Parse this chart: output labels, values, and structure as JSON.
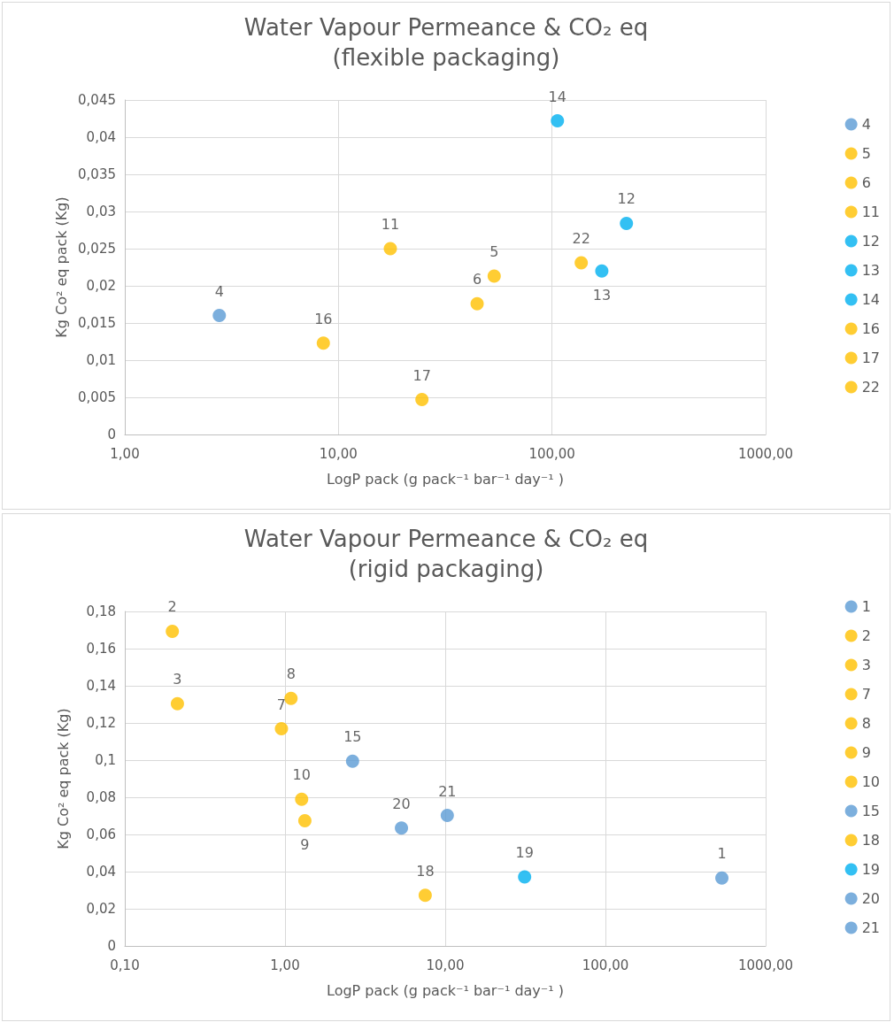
{
  "chart_data": [
    {
      "type": "scatter",
      "title": "Water Vapour Permeance & CO₂ eq\n(flexible packaging)",
      "xlabel": "LogP pack (g pack⁻¹ bar⁻¹ day⁻¹ )",
      "ylabel": "Kg Co² eq pack (Kg)",
      "log": "x",
      "grid": true,
      "legend": "right",
      "marker": "circle",
      "xlim": [
        1,
        1000
      ],
      "xticks": [
        {
          "value": 1,
          "label": "1,00"
        },
        {
          "value": 10,
          "label": "10,00"
        },
        {
          "value": 100,
          "label": "100,00"
        },
        {
          "value": 1000,
          "label": "1000,00"
        }
      ],
      "ylim": [
        0,
        0.045
      ],
      "yticks": [
        {
          "value": 0,
          "label": "0"
        },
        {
          "value": 0.005,
          "label": "0,005"
        },
        {
          "value": 0.01,
          "label": "0,01"
        },
        {
          "value": 0.015,
          "label": "0,015"
        },
        {
          "value": 0.02,
          "label": "0,02"
        },
        {
          "value": 0.025,
          "label": "0,025"
        },
        {
          "value": 0.03,
          "label": "0,03"
        },
        {
          "value": 0.035,
          "label": "0,035"
        },
        {
          "value": 0.04,
          "label": "0,04"
        },
        {
          "value": 0.045,
          "label": "0,045"
        }
      ],
      "series": [
        {
          "name": "4",
          "color": "#5b9bd5",
          "x": [
            2.77
          ],
          "values": [
            0.016
          ]
        },
        {
          "name": "5",
          "color": "#ffc000",
          "x": [
            53.6
          ],
          "values": [
            0.0213
          ]
        },
        {
          "name": "6",
          "color": "#ffc000",
          "x": [
            44.6
          ],
          "values": [
            0.0176
          ]
        },
        {
          "name": "11",
          "color": "#ffc000",
          "x": [
            17.5
          ],
          "values": [
            0.025
          ]
        },
        {
          "name": "12",
          "color": "#00b0f0",
          "x": [
            223
          ],
          "values": [
            0.0284
          ]
        },
        {
          "name": "13",
          "color": "#00b0f0",
          "x": [
            171
          ],
          "values": [
            0.022
          ]
        },
        {
          "name": "14",
          "color": "#00b0f0",
          "x": [
            106
          ],
          "values": [
            0.0422
          ]
        },
        {
          "name": "16",
          "color": "#ffc000",
          "x": [
            8.5
          ],
          "values": [
            0.0123
          ]
        },
        {
          "name": "17",
          "color": "#ffc000",
          "x": [
            24.6
          ],
          "values": [
            0.0047
          ]
        },
        {
          "name": "22",
          "color": "#ffc000",
          "x": [
            137
          ],
          "values": [
            0.0231
          ]
        }
      ]
    },
    {
      "type": "scatter",
      "title": "Water Vapour Permeance & CO₂ eq\n(rigid packaging)",
      "xlabel": "LogP pack (g pack⁻¹ bar⁻¹ day⁻¹ )",
      "ylabel": "Kg Co² eq pack (Kg)",
      "log": "x",
      "grid": true,
      "legend": "right",
      "marker": "circle",
      "xlim": [
        0.1,
        1000
      ],
      "xticks": [
        {
          "value": 0.1,
          "label": "0,10"
        },
        {
          "value": 1,
          "label": "1,00"
        },
        {
          "value": 10,
          "label": "10,00"
        },
        {
          "value": 100,
          "label": "100,00"
        },
        {
          "value": 1000,
          "label": "1000,00"
        }
      ],
      "ylim": [
        0,
        0.18
      ],
      "yticks": [
        {
          "value": 0,
          "label": "0"
        },
        {
          "value": 0.02,
          "label": "0,02"
        },
        {
          "value": 0.04,
          "label": "0,04"
        },
        {
          "value": 0.06,
          "label": "0,06"
        },
        {
          "value": 0.08,
          "label": "0,08"
        },
        {
          "value": 0.1,
          "label": "0,1"
        },
        {
          "value": 0.12,
          "label": "0,12"
        },
        {
          "value": 0.14,
          "label": "0,14"
        },
        {
          "value": 0.16,
          "label": "0,16"
        },
        {
          "value": 0.18,
          "label": "0,18"
        }
      ],
      "series": [
        {
          "name": "1",
          "color": "#5b9bd5",
          "x": [
            533
          ],
          "values": [
            0.0366
          ]
        },
        {
          "name": "2",
          "color": "#ffc000",
          "x": [
            0.198
          ],
          "values": [
            0.1693
          ]
        },
        {
          "name": "3",
          "color": "#ffc000",
          "x": [
            0.213
          ],
          "values": [
            0.1304
          ]
        },
        {
          "name": "7",
          "color": "#ffc000",
          "x": [
            0.95
          ],
          "values": [
            0.1169
          ]
        },
        {
          "name": "8",
          "color": "#ffc000",
          "x": [
            1.09
          ],
          "values": [
            0.1332
          ]
        },
        {
          "name": "9",
          "color": "#ffc000",
          "x": [
            1.33
          ],
          "values": [
            0.0674
          ]
        },
        {
          "name": "10",
          "color": "#ffc000",
          "x": [
            1.27
          ],
          "values": [
            0.0789
          ]
        },
        {
          "name": "15",
          "color": "#5b9bd5",
          "x": [
            2.64
          ],
          "values": [
            0.0994
          ]
        },
        {
          "name": "18",
          "color": "#ffc000",
          "x": [
            7.5
          ],
          "values": [
            0.0273
          ]
        },
        {
          "name": "19",
          "color": "#00b0f0",
          "x": [
            31.3
          ],
          "values": [
            0.0371
          ]
        },
        {
          "name": "20",
          "color": "#5b9bd5",
          "x": [
            5.33
          ],
          "values": [
            0.0635
          ]
        },
        {
          "name": "21",
          "color": "#5b9bd5",
          "x": [
            10.3
          ],
          "values": [
            0.0702
          ]
        }
      ]
    }
  ]
}
